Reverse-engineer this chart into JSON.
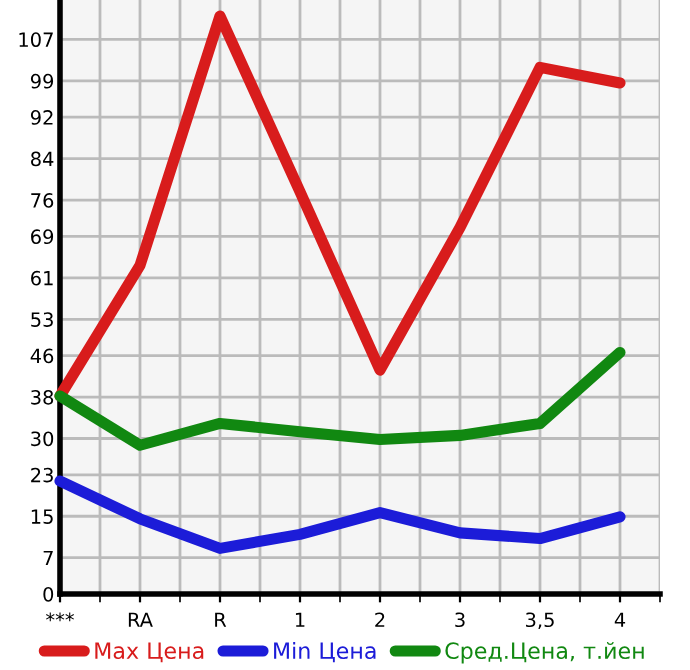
{
  "chart_data": {
    "type": "line",
    "categories": [
      "***",
      "RA",
      "R",
      "1",
      "2",
      "3",
      "3,5",
      "4"
    ],
    "series": [
      {
        "name": "Max Цена",
        "color": "#d81c1c",
        "values": [
          38.2,
          63.4,
          111.5,
          77.6,
          43.2,
          70.7,
          101.6,
          98.6
        ]
      },
      {
        "name": "Min Цена",
        "color": "#1c1cd8",
        "values": [
          21.8,
          14.5,
          8.8,
          11.5,
          15.7,
          11.8,
          10.7,
          14.9
        ]
      },
      {
        "name": "Сред.Цена, т.йен",
        "color": "#118811",
        "values": [
          38.2,
          28.7,
          32.9,
          31.3,
          29.8,
          30.6,
          32.9,
          46.6
        ]
      }
    ],
    "ylim": [
      0,
      114.6
    ],
    "yticks": [
      0,
      7,
      15,
      23,
      30,
      38,
      46,
      53,
      61,
      69,
      76,
      84,
      92,
      99,
      107
    ],
    "grid": true,
    "legend": "bottom",
    "marker": "none",
    "line_style": "solid"
  }
}
